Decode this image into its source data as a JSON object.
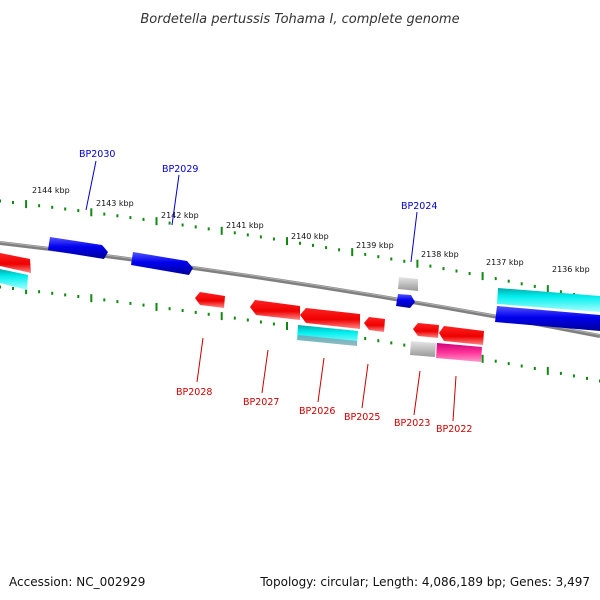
{
  "title": "Bordetella pertussis Tohama I, complete genome",
  "footer": {
    "accession": "Accession: NC_002929",
    "summary": "Topology: circular; Length: 4,086,189 bp; Genes: 3,497"
  },
  "colors": {
    "forward_label": "#0000cc",
    "reverse_label": "#cc0000",
    "tick": "#118811",
    "backbone": "#808080",
    "cds_forward": "#0000ee",
    "cds_reverse": "#ee0000",
    "feature_cyan": "#00dddd",
    "feature_gray": "#bbbbbb",
    "feature_magenta": "#ee2299"
  },
  "scale_labels": [
    "2144 kbp",
    "2143 kbp",
    "2142 kbp",
    "2141 kbp",
    "2140 kbp",
    "2139 kbp",
    "2138 kbp",
    "2137 kbp",
    "2136 kbp"
  ],
  "gene_labels_forward": [
    "BP2030",
    "BP2029",
    "BP2024"
  ],
  "gene_labels_reverse": [
    "BP2028",
    "BP2027",
    "BP2026",
    "BP2025",
    "BP2023",
    "BP2022"
  ]
}
